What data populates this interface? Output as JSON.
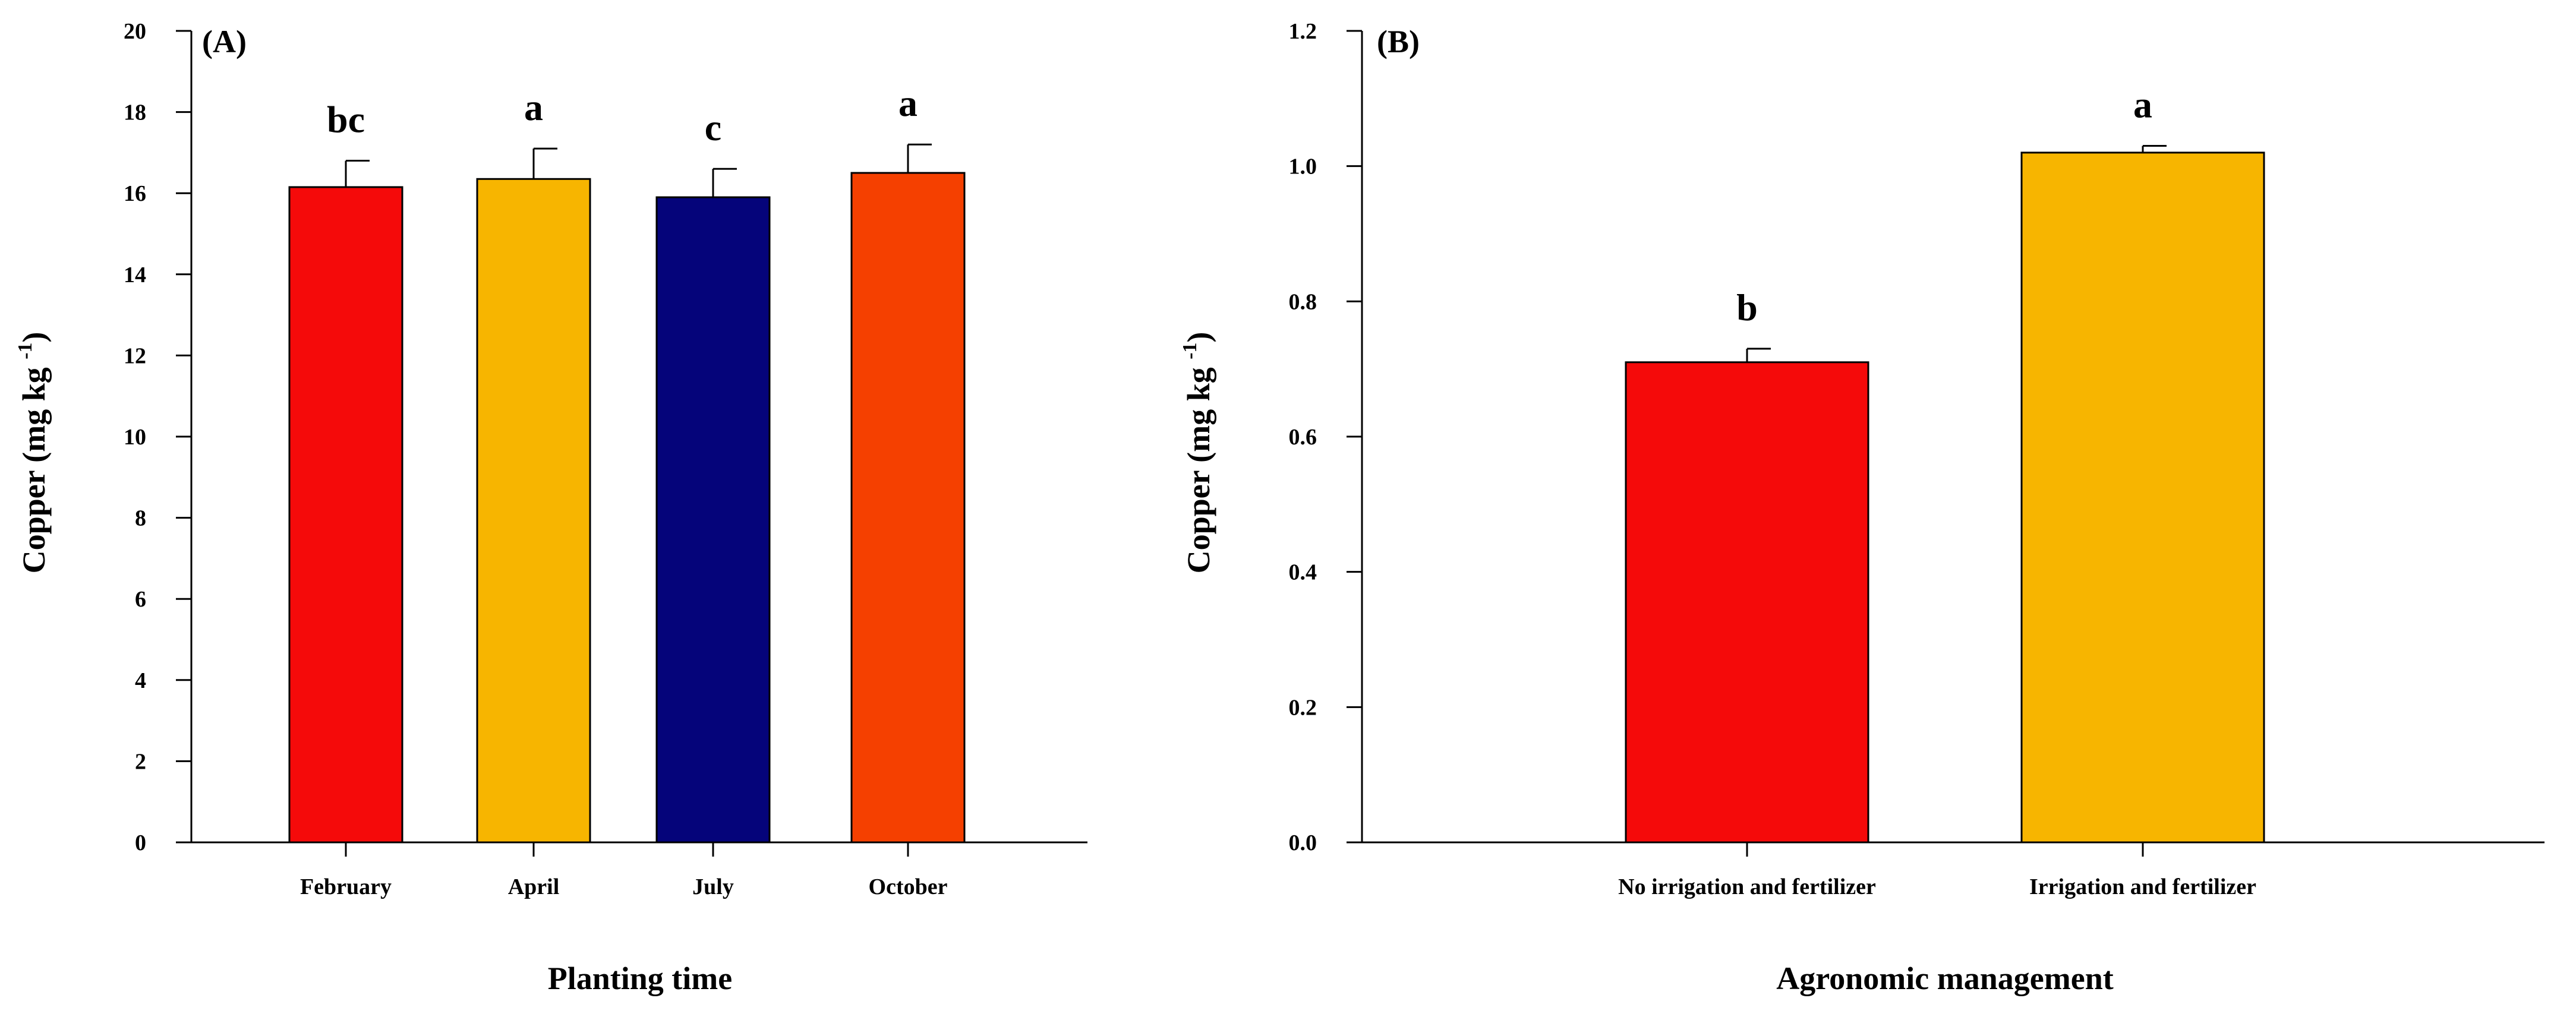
{
  "chart_data": [
    {
      "type": "bar",
      "panel_label": "(A)",
      "title": "",
      "categories": [
        "February",
        "April",
        "July",
        "October"
      ],
      "values": [
        16.15,
        16.35,
        15.9,
        16.5
      ],
      "errors": [
        0.65,
        0.75,
        0.7,
        0.7
      ],
      "significance": [
        "bc",
        "a",
        "c",
        "a"
      ],
      "colors": [
        "#f50a0a",
        "#f7b500",
        "#05047a",
        "#f54000"
      ],
      "xlabel": "Planting time",
      "ylabel": {
        "main": "Copper (mg kg",
        "sup": "-1",
        "close": ")"
      },
      "ylim": [
        0,
        20
      ],
      "yticks": [
        0,
        2,
        4,
        6,
        8,
        10,
        12,
        14,
        16,
        18,
        20
      ],
      "ytick_labels": [
        "0",
        "2",
        "4",
        "6",
        "8",
        "10",
        "12",
        "14",
        "16",
        "18",
        "20"
      ],
      "grid": false
    },
    {
      "type": "bar",
      "panel_label": "(B)",
      "title": "",
      "categories": [
        "No irrigation and fertilizer",
        "Irrigation and fertilizer"
      ],
      "values": [
        0.71,
        1.02
      ],
      "errors": [
        0.02,
        0.01
      ],
      "significance": [
        "b",
        "a"
      ],
      "colors": [
        "#f50a0a",
        "#f7b500"
      ],
      "xlabel": "Agronomic management",
      "ylabel": {
        "main": "Copper (mg kg",
        "sup": "-1",
        "close": ")"
      },
      "ylim": [
        0,
        1.2
      ],
      "yticks": [
        0,
        0.2,
        0.4,
        0.6,
        0.8,
        1.0,
        1.2
      ],
      "ytick_labels": [
        "0.0",
        "0.2",
        "0.4",
        "0.6",
        "0.8",
        "1.0",
        "1.2"
      ],
      "grid": false
    }
  ]
}
